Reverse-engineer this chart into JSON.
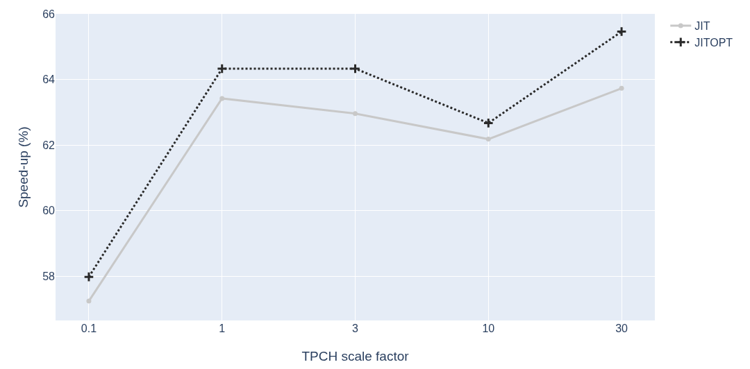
{
  "chart_data": {
    "type": "line",
    "xlabel": "TPCH scale factor",
    "ylabel": "Speed-up (%)",
    "categories": [
      "0.1",
      "1",
      "3",
      "10",
      "30"
    ],
    "ylim": [
      56.65,
      66.0
    ],
    "yticks": [
      58,
      60,
      62,
      64,
      66
    ],
    "grid": true,
    "legend": "top right",
    "series": [
      {
        "name": "JIT",
        "color": "#c8c8c8",
        "marker": "circle",
        "line_style": "solid",
        "values": [
          57.24,
          63.42,
          62.96,
          62.18,
          63.73
        ]
      },
      {
        "name": "JITOPT",
        "color": "#2a2a2a",
        "marker": "cross",
        "line_style": "dotted",
        "values": [
          57.98,
          64.33,
          64.33,
          62.67,
          65.46
        ]
      }
    ]
  }
}
